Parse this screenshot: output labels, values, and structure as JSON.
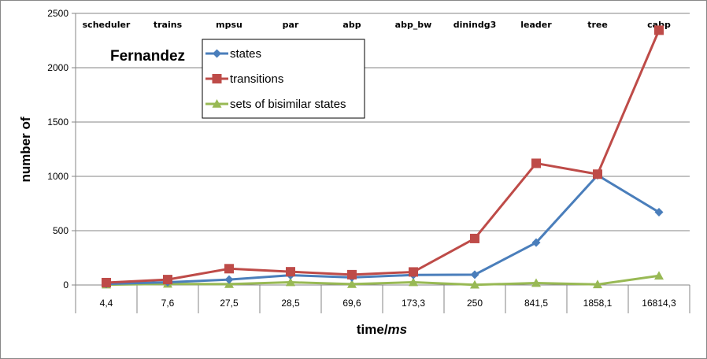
{
  "chart_data": {
    "type": "line",
    "title": "Fernandez",
    "xlabel_main": "time/",
    "xlabel_unit": "ms",
    "ylabel": "number of",
    "ylim": [
      0,
      2500
    ],
    "yticks": [
      "0",
      "500",
      "1000",
      "1500",
      "2000",
      "2500"
    ],
    "x": [
      "4,4",
      "7,6",
      "27,5",
      "28,5",
      "69,6",
      "173,3",
      "250",
      "841,5",
      "1858,1",
      "16814,3"
    ],
    "category_labels": [
      "scheduler",
      "trains",
      "mpsu",
      "par",
      "abp",
      "abp_bw",
      "dinindg3",
      "leader",
      "tree",
      "cabp"
    ],
    "grid": true,
    "legend_position": "top-center",
    "series": [
      {
        "name": "states",
        "color": "#4a7ebb",
        "marker": "diamond",
        "values": [
          10,
          25,
          50,
          90,
          70,
          92,
          95,
          390,
          1010,
          670
        ]
      },
      {
        "name": "transitions",
        "color": "#be4b48",
        "marker": "square",
        "values": [
          22,
          50,
          150,
          122,
          95,
          120,
          428,
          1120,
          1020,
          2345
        ]
      },
      {
        "name": "sets of bisimilar states",
        "color": "#98b954",
        "marker": "triangle",
        "values": [
          3,
          10,
          8,
          25,
          8,
          25,
          2,
          18,
          5,
          85
        ]
      }
    ]
  }
}
